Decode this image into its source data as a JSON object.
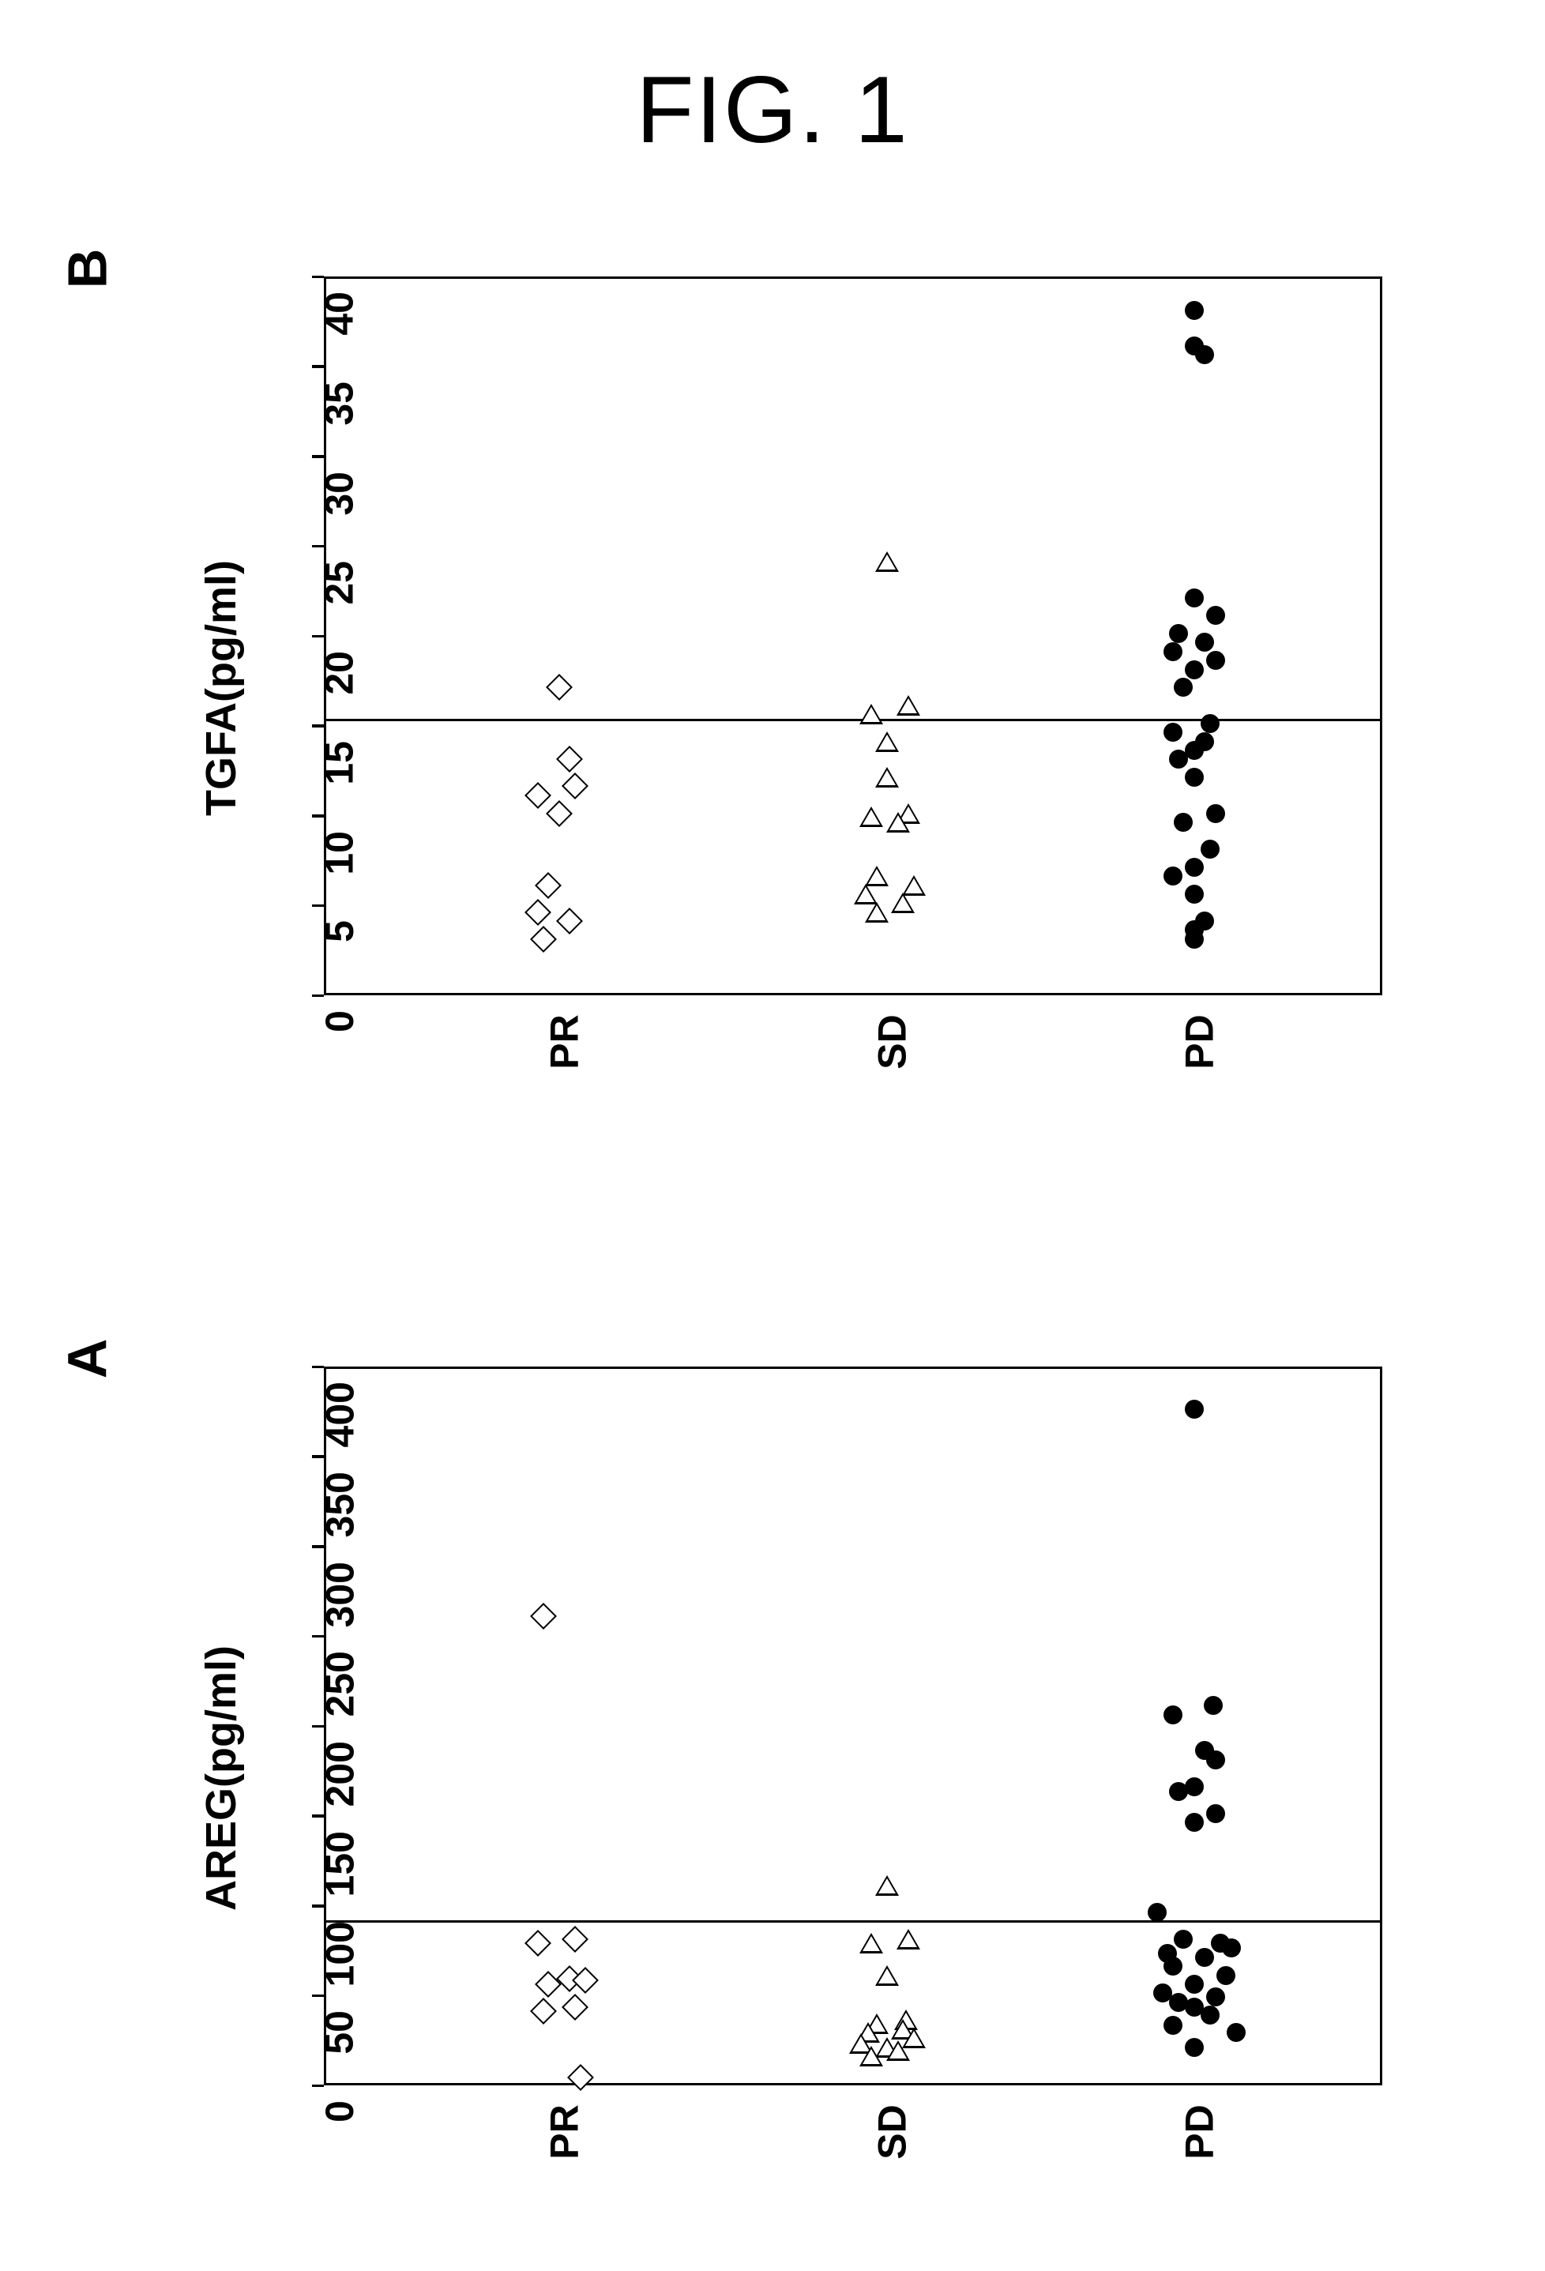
{
  "figure_title": "FIG. 1",
  "panels": {
    "A": {
      "label": "A",
      "y_axis_label": "AREG(pg/ml)",
      "ylim": [
        0,
        400
      ],
      "y_ticks": [
        0,
        50,
        100,
        150,
        200,
        250,
        300,
        350,
        400
      ],
      "x_categories": [
        "PR",
        "SD",
        "PD"
      ],
      "reference_line_y": 93,
      "background_color": "#ffffff",
      "border_color": "#000000",
      "text_color": "#000000",
      "marker_size": 24,
      "line_width": 3.5,
      "font_size_axis": 54,
      "font_size_tick": 50,
      "font_size_panel_label": 70,
      "series": [
        {
          "name": "PR",
          "marker": "diamond",
          "fill": "#ffffff",
          "stroke": "#000000",
          "x_pos": 0.22,
          "x_jitter": [
            -0.015,
            0.015,
            -0.02,
            0.01,
            0.025,
            -0.01,
            0.015,
            -0.015,
            0.02
          ],
          "values": [
            260,
            80,
            78,
            58,
            57,
            55,
            42,
            40,
            3
          ]
        },
        {
          "name": "SD",
          "marker": "triangle",
          "fill": "#ffffff",
          "stroke": "#000000",
          "x_pos": 0.53,
          "x_jitter": [
            0.0,
            0.02,
            -0.015,
            0.0,
            0.018,
            -0.01,
            0.015,
            -0.018,
            0.025,
            -0.025,
            0.0,
            0.01,
            -0.015
          ],
          "values": [
            110,
            80,
            78,
            60,
            35,
            33,
            30,
            28,
            25,
            22,
            20,
            18,
            15
          ]
        },
        {
          "name": "PD",
          "marker": "circle",
          "fill": "#000000",
          "stroke": "#000000",
          "x_pos": 0.82,
          "x_jitter": [
            0.0,
            0.018,
            -0.02,
            0.01,
            0.02,
            0.0,
            -0.015,
            0.02,
            0.0,
            -0.035,
            -0.01,
            0.025,
            0.035,
            -0.025,
            0.01,
            -0.02,
            0.03,
            0.0,
            -0.03,
            0.02,
            -0.015,
            0.0,
            0.015,
            -0.02,
            0.04,
            0.0
          ],
          "values": [
            375,
            210,
            205,
            185,
            180,
            165,
            162,
            150,
            145,
            95,
            80,
            78,
            75,
            72,
            70,
            65,
            60,
            55,
            50,
            48,
            45,
            42,
            38,
            32,
            28,
            20
          ]
        }
      ]
    },
    "B": {
      "label": "B",
      "y_axis_label": "TGFA(pg/ml)",
      "ylim": [
        0,
        40
      ],
      "y_ticks": [
        0,
        5,
        10,
        15,
        20,
        25,
        30,
        35,
        40
      ],
      "x_categories": [
        "PR",
        "SD",
        "PD"
      ],
      "reference_line_y": 15.5,
      "background_color": "#ffffff",
      "border_color": "#000000",
      "text_color": "#000000",
      "marker_size": 24,
      "line_width": 3.5,
      "font_size_axis": 54,
      "font_size_tick": 50,
      "font_size_panel_label": 70,
      "series": [
        {
          "name": "PR",
          "marker": "diamond",
          "fill": "#ffffff",
          "stroke": "#000000",
          "x_pos": 0.22,
          "x_jitter": [
            0.0,
            0.01,
            -0.02,
            0.015,
            0.0,
            -0.01,
            -0.02,
            0.01,
            -0.015
          ],
          "values": [
            17,
            13,
            11,
            11.5,
            10,
            6,
            4.5,
            4,
            3
          ]
        },
        {
          "name": "SD",
          "marker": "triangle",
          "fill": "#ffffff",
          "stroke": "#000000",
          "x_pos": 0.53,
          "x_jitter": [
            0.0,
            0.02,
            -0.015,
            0.0,
            0.0,
            0.02,
            -0.015,
            0.01,
            -0.01,
            0.025,
            -0.02,
            0.015,
            -0.01
          ],
          "values": [
            24,
            16,
            15.5,
            14,
            12,
            10,
            9.8,
            9.5,
            6.5,
            6,
            5.5,
            5,
            4.5
          ]
        },
        {
          "name": "PD",
          "marker": "circle",
          "fill": "#000000",
          "stroke": "#000000",
          "x_pos": 0.82,
          "x_jitter": [
            0.0,
            0.0,
            0.01,
            0.0,
            0.02,
            -0.015,
            0.01,
            -0.02,
            0.02,
            0.0,
            -0.01,
            0.015,
            -0.02,
            0.01,
            0.0,
            -0.015,
            0.0,
            0.02,
            -0.01,
            0.015,
            0.0,
            -0.02,
            0.0,
            0.01,
            0.0,
            0.0
          ],
          "values": [
            38,
            36,
            35.5,
            22,
            21,
            20,
            19.5,
            19,
            18.5,
            18,
            17,
            15,
            14.5,
            14,
            13.5,
            13,
            12,
            10,
            9.5,
            8,
            7,
            6.5,
            5.5,
            4,
            3.5,
            3
          ]
        }
      ]
    }
  }
}
